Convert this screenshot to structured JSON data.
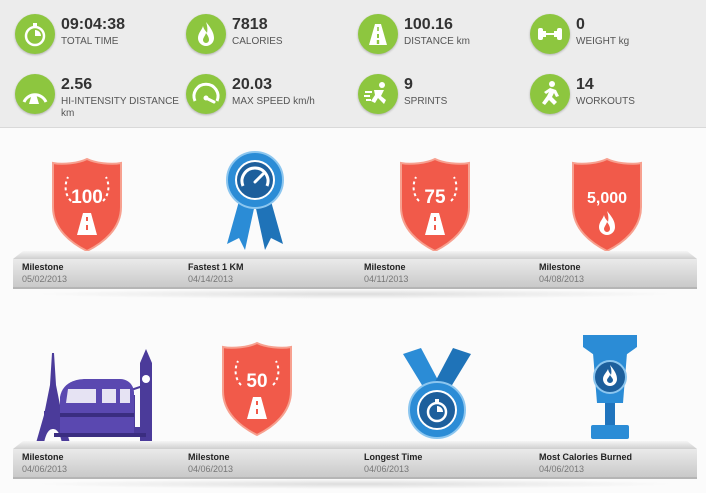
{
  "colors": {
    "green": "#8dc63f",
    "orange": "#f15a4a",
    "blue": "#2b8cd6",
    "purple": "#4b3b9a"
  },
  "stats": [
    {
      "value": "09:04:38",
      "label": "TOTAL TIME",
      "icon": "stopwatch-icon"
    },
    {
      "value": "7818",
      "label": "CALORIES",
      "icon": "flame-icon"
    },
    {
      "value": "100.16",
      "label": "DISTANCE km",
      "icon": "road-icon"
    },
    {
      "value": "0",
      "label": "WEIGHT kg",
      "icon": "dumbbell-icon"
    },
    {
      "value": "2.56",
      "label": "HI-INTENSITY DISTANCE km",
      "icon": "intensity-gauge-icon"
    },
    {
      "value": "20.03",
      "label": "MAX SPEED km/h",
      "icon": "speedometer-icon"
    },
    {
      "value": "9",
      "label": "SPRINTS",
      "icon": "sprinter-icon"
    },
    {
      "value": "14",
      "label": "WORKOUTS",
      "icon": "runner-icon"
    }
  ],
  "badges": [
    {
      "title": "Milestone",
      "date": "05/02/2013",
      "icon": "milestone-100-badge-icon",
      "badge_text": "100"
    },
    {
      "title": "Fastest 1 KM",
      "date": "04/14/2013",
      "icon": "fastest-ribbon-icon"
    },
    {
      "title": "Milestone",
      "date": "04/11/2013",
      "icon": "milestone-75-badge-icon",
      "badge_text": "75"
    },
    {
      "title": "Milestone",
      "date": "04/08/2013",
      "icon": "calories-5000-badge-icon",
      "badge_text": "5,000"
    },
    {
      "title": "Milestone",
      "date": "04/06/2013",
      "icon": "travel-landmarks-icon"
    },
    {
      "title": "Milestone",
      "date": "04/06/2013",
      "icon": "milestone-50-badge-icon",
      "badge_text": "50"
    },
    {
      "title": "Longest Time",
      "date": "04/06/2013",
      "icon": "stopwatch-medal-icon"
    },
    {
      "title": "Most Calories Burned",
      "date": "04/06/2013",
      "icon": "flame-trophy-icon"
    }
  ]
}
